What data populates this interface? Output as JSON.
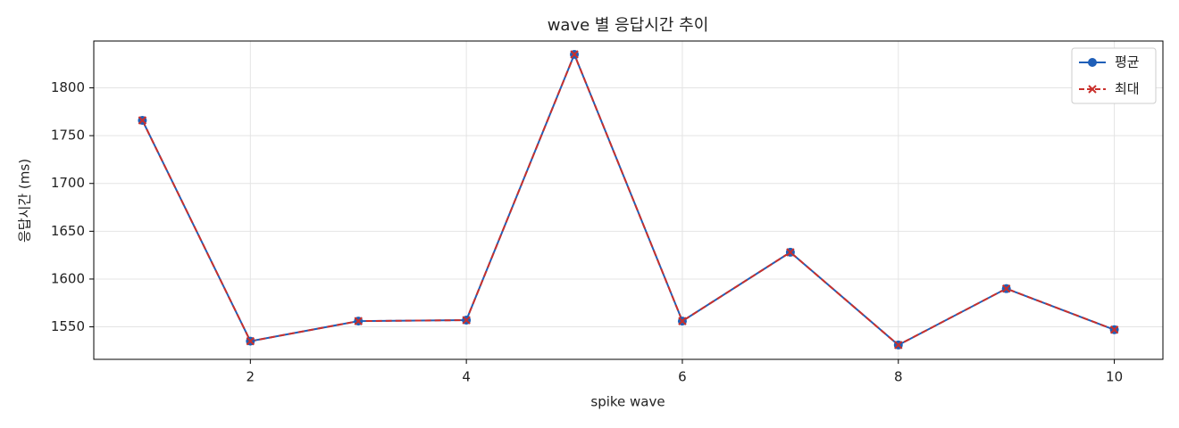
{
  "chart_data": {
    "type": "line",
    "title": "wave 별 응답시간 추이",
    "x_label": "spike wave",
    "y_label": "응답시간 (ms)",
    "x": [
      1,
      2,
      3,
      4,
      5,
      6,
      7,
      8,
      9,
      10
    ],
    "series": [
      {
        "name": "평균",
        "color": "#1f5fb8",
        "marker": "o",
        "dash": "solid",
        "values": [
          1766,
          1535,
          1556,
          1557,
          1835,
          1556,
          1628,
          1531,
          1590,
          1547
        ]
      },
      {
        "name": "최대",
        "color": "#c9302c",
        "marker": "x",
        "dash": "dashed",
        "values": [
          1766,
          1535,
          1556,
          1557,
          1835,
          1556,
          1628,
          1531,
          1590,
          1547
        ]
      }
    ],
    "xlim": [
      0.55,
      10.45
    ],
    "ylim": [
      1516,
      1849
    ],
    "xticks": [
      2,
      4,
      6,
      8,
      10
    ],
    "yticks": [
      1550,
      1600,
      1650,
      1700,
      1750,
      1800
    ],
    "grid": true,
    "legend_position": "upper right"
  }
}
